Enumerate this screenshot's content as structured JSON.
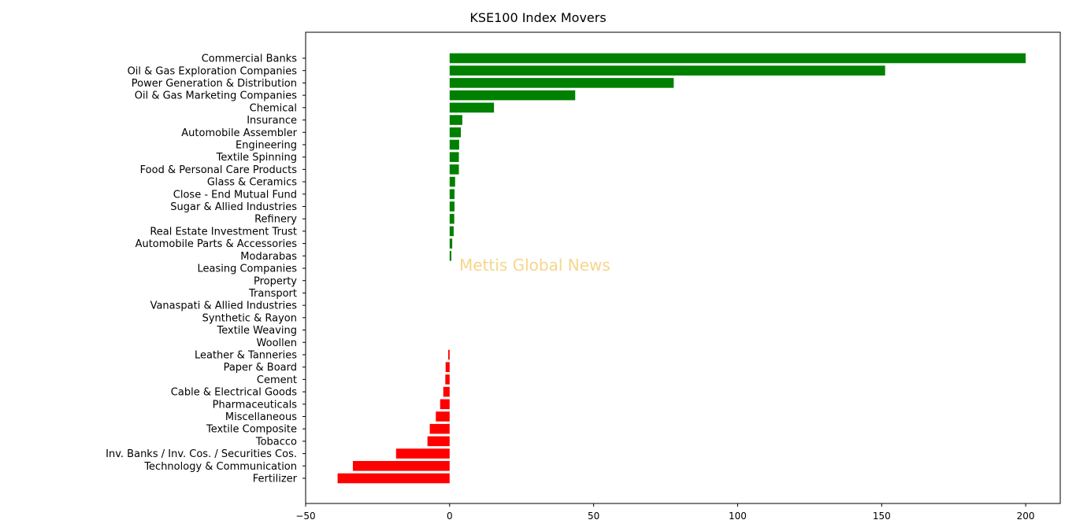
{
  "chart_data": {
    "type": "bar",
    "orientation": "horizontal",
    "title": "KSE100 Index Movers",
    "xlabel": "",
    "ylabel": "",
    "xlim": [
      -50,
      212
    ],
    "xticks": [
      -50,
      0,
      50,
      100,
      150,
      200
    ],
    "xtick_labels": [
      "−50",
      "0",
      "50",
      "100",
      "150",
      "200"
    ],
    "grid": false,
    "watermark": "Mettis Global News",
    "colors": {
      "positive": "#008000",
      "negative": "#ff0000",
      "watermark": "#f6d68a"
    },
    "categories": [
      "Commercial Banks",
      "Oil & Gas Exploration Companies",
      "Power Generation & Distribution",
      "Oil & Gas Marketing Companies",
      "Chemical",
      "Insurance",
      "Automobile Assembler",
      "Engineering",
      "Textile Spinning",
      "Food & Personal Care Products",
      "Glass & Ceramics",
      "Close - End Mutual Fund",
      "Sugar & Allied Industries",
      "Refinery",
      "Real Estate Investment Trust",
      "Automobile Parts & Accessories",
      "Modarabas",
      "Leasing Companies",
      "Property",
      "Transport",
      "Vanaspati & Allied Industries",
      "Synthetic & Rayon",
      "Textile Weaving",
      "Woollen",
      "Leather & Tanneries",
      "Paper & Board",
      "Cement",
      "Cable & Electrical Goods",
      "Pharmaceuticals",
      "Miscellaneous",
      "Textile Composite",
      "Tobacco",
      "Inv. Banks / Inv. Cos. / Securities Cos.",
      "Technology & Communication",
      "Fertilizer"
    ],
    "values": [
      200.0,
      151.2,
      77.8,
      43.6,
      15.4,
      4.4,
      3.9,
      3.3,
      3.2,
      3.2,
      1.9,
      1.7,
      1.7,
      1.6,
      1.4,
      0.9,
      0.6,
      0,
      0,
      0,
      0,
      0,
      0,
      0,
      -0.5,
      -1.4,
      -1.5,
      -2.2,
      -3.3,
      -4.8,
      -6.9,
      -7.7,
      -18.6,
      -33.6,
      -38.9
    ]
  }
}
